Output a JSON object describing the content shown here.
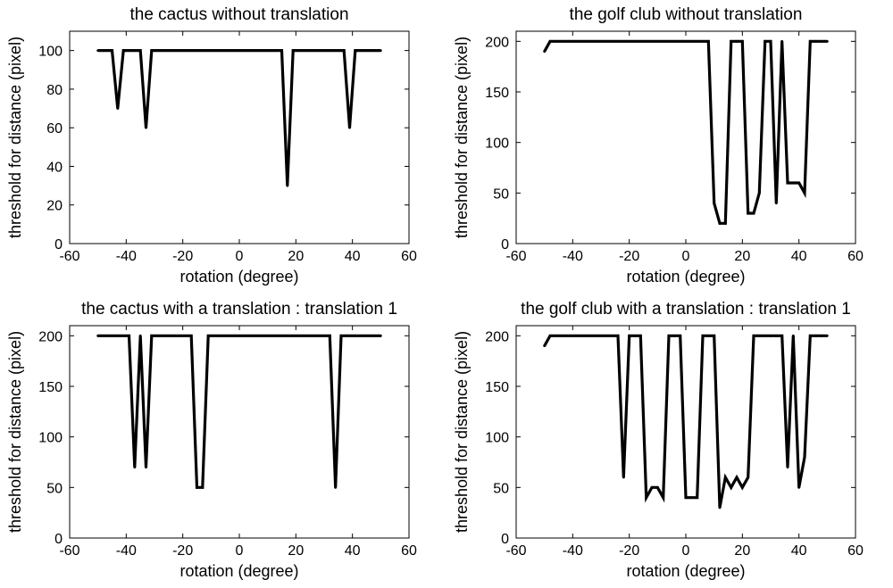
{
  "chart_data": [
    {
      "type": "line",
      "title": "the cactus without translation",
      "xlabel": "rotation (degree)",
      "ylabel": "threshold for distance (pixel)",
      "xlim": [
        -60,
        60
      ],
      "ylim": [
        0,
        110
      ],
      "xticks": [
        -60,
        -40,
        -20,
        0,
        20,
        40,
        60
      ],
      "yticks": [
        0,
        20,
        40,
        60,
        80,
        100
      ],
      "xtick_labels": [
        "-60",
        "-40",
        "-20",
        "0",
        "20",
        "40",
        "60"
      ],
      "ytick_labels": [
        "0",
        "20",
        "40",
        "60",
        "80",
        "100"
      ],
      "series": [
        {
          "name": "threshold",
          "x": [
            -50,
            -45,
            -43,
            -41,
            -37,
            -35,
            -33,
            -31,
            15,
            17,
            19,
            37,
            39,
            41,
            50
          ],
          "y": [
            100,
            100,
            70,
            100,
            100,
            100,
            60,
            100,
            100,
            30,
            100,
            100,
            60,
            100,
            100
          ]
        }
      ]
    },
    {
      "type": "line",
      "title": "the golf club without translation",
      "xlabel": "rotation (degree)",
      "ylabel": "threshold for distance (pixel)",
      "xlim": [
        -60,
        60
      ],
      "ylim": [
        0,
        210
      ],
      "xticks": [
        -60,
        -40,
        -20,
        0,
        20,
        40,
        60
      ],
      "yticks": [
        0,
        50,
        100,
        150,
        200
      ],
      "xtick_labels": [
        "-60",
        "-40",
        "-20",
        "0",
        "20",
        "40",
        "60"
      ],
      "ytick_labels": [
        "0",
        "50",
        "100",
        "150",
        "200"
      ],
      "series": [
        {
          "name": "threshold",
          "x": [
            -50,
            -48,
            8,
            10,
            12,
            14,
            16,
            18,
            20,
            22,
            24,
            26,
            28,
            30,
            32,
            34,
            36,
            38,
            40,
            42,
            44,
            46,
            48,
            50
          ],
          "y": [
            190,
            200,
            200,
            40,
            20,
            20,
            200,
            200,
            200,
            30,
            30,
            50,
            200,
            200,
            40,
            200,
            60,
            60,
            60,
            50,
            200,
            200,
            200,
            200
          ]
        }
      ]
    },
    {
      "type": "line",
      "title": "the cactus with a translation : translation 1",
      "xlabel": "rotation (degree)",
      "ylabel": "threshold for distance (pixel)",
      "xlim": [
        -60,
        60
      ],
      "ylim": [
        0,
        210
      ],
      "xticks": [
        -60,
        -40,
        -20,
        0,
        20,
        40,
        60
      ],
      "yticks": [
        0,
        50,
        100,
        150,
        200
      ],
      "xtick_labels": [
        "-60",
        "-40",
        "-20",
        "0",
        "20",
        "40",
        "60"
      ],
      "ytick_labels": [
        "0",
        "50",
        "100",
        "150",
        "200"
      ],
      "series": [
        {
          "name": "threshold",
          "x": [
            -50,
            -39,
            -37,
            -35,
            -33,
            -31,
            -17,
            -15,
            -13,
            -11,
            32,
            34,
            36,
            50
          ],
          "y": [
            200,
            200,
            70,
            200,
            70,
            200,
            200,
            50,
            50,
            200,
            200,
            50,
            200,
            200
          ]
        }
      ]
    },
    {
      "type": "line",
      "title": "the golf club with a translation : translation 1",
      "xlabel": "rotation (degree)",
      "ylabel": "threshold for distance (pixel)",
      "xlim": [
        -60,
        60
      ],
      "ylim": [
        0,
        210
      ],
      "xticks": [
        -60,
        -40,
        -20,
        0,
        20,
        40,
        60
      ],
      "yticks": [
        0,
        50,
        100,
        150,
        200
      ],
      "xtick_labels": [
        "-60",
        "-40",
        "-20",
        "0",
        "20",
        "40",
        "60"
      ],
      "ytick_labels": [
        "0",
        "50",
        "100",
        "150",
        "200"
      ],
      "series": [
        {
          "name": "threshold",
          "x": [
            -50,
            -48,
            -24,
            -22,
            -20,
            -18,
            -16,
            -14,
            -12,
            -10,
            -8,
            -6,
            -4,
            -2,
            0,
            2,
            4,
            6,
            8,
            10,
            12,
            14,
            16,
            18,
            20,
            22,
            24,
            26,
            28,
            30,
            32,
            34,
            36,
            38,
            40,
            42,
            44,
            46,
            48,
            50
          ],
          "y": [
            190,
            200,
            200,
            60,
            200,
            200,
            200,
            40,
            50,
            50,
            40,
            200,
            200,
            200,
            40,
            40,
            40,
            200,
            200,
            200,
            30,
            60,
            50,
            60,
            50,
            60,
            200,
            200,
            200,
            200,
            200,
            200,
            70,
            200,
            50,
            80,
            200,
            200,
            200,
            200
          ]
        }
      ]
    }
  ]
}
